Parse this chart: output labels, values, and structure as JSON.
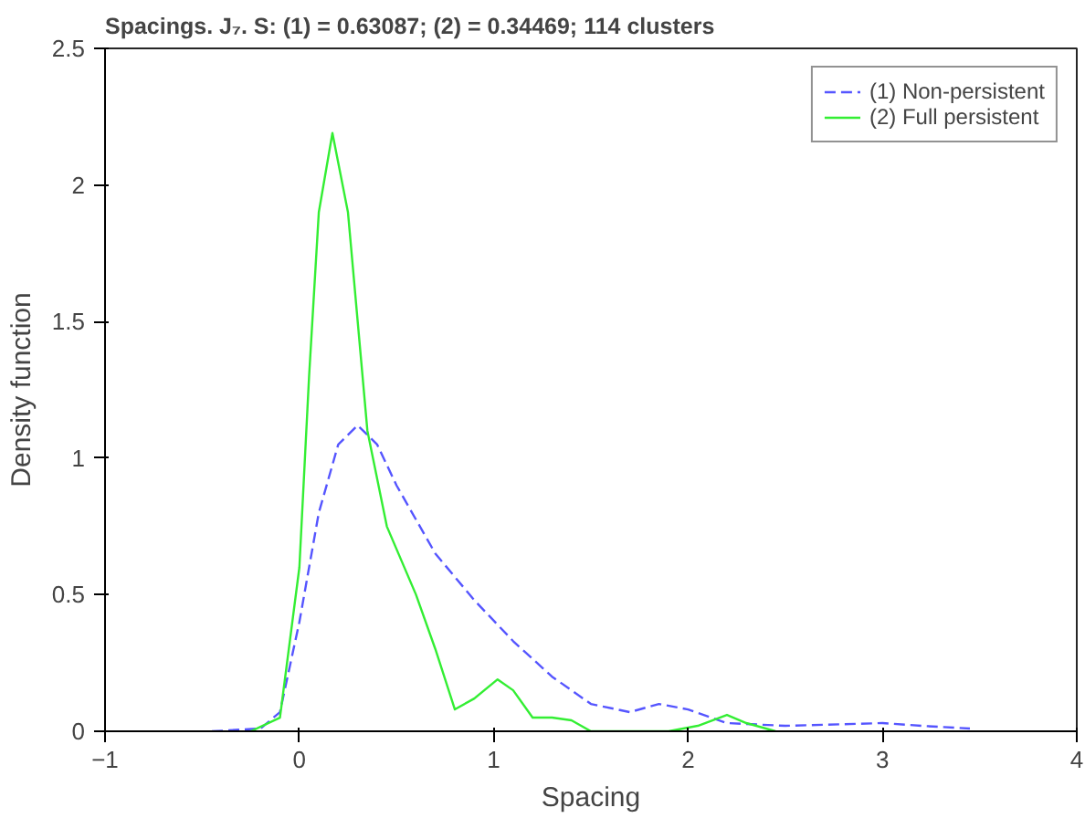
{
  "chart_data": {
    "type": "line",
    "title": "Spacings. J₇. S: (1) = 0.63087; (2) = 0.34469; 114 clusters",
    "xlabel": "Spacing",
    "ylabel": "Density function",
    "xlim": [
      -1,
      4
    ],
    "ylim": [
      0,
      2.5
    ],
    "xticks": [
      -1,
      0,
      1,
      2,
      3,
      4
    ],
    "yticks": [
      0,
      0.5,
      1,
      1.5,
      2,
      2.5
    ],
    "grid": false,
    "legend": "top right",
    "marker": "none",
    "series": [
      {
        "name": "(1) Non-persistent",
        "color": "#5555ff",
        "line_style": "dashed",
        "x": [
          -0.45,
          -0.2,
          -0.1,
          0,
          0.1,
          0.2,
          0.3,
          0.4,
          0.5,
          0.7,
          0.9,
          1.1,
          1.3,
          1.5,
          1.7,
          1.85,
          2.0,
          2.2,
          2.5,
          3.0,
          3.2,
          3.45
        ],
        "values": [
          0,
          0.01,
          0.07,
          0.4,
          0.8,
          1.05,
          1.12,
          1.05,
          0.9,
          0.65,
          0.48,
          0.33,
          0.2,
          0.1,
          0.07,
          0.1,
          0.08,
          0.03,
          0.02,
          0.03,
          0.02,
          0.01
        ]
      },
      {
        "name": "(2) Full persistent",
        "color": "#33ee33",
        "line_style": "solid",
        "x": [
          -0.25,
          -0.1,
          0,
          0.05,
          0.1,
          0.17,
          0.25,
          0.35,
          0.45,
          0.6,
          0.7,
          0.8,
          0.9,
          1.02,
          1.1,
          1.2,
          1.3,
          1.4,
          1.5,
          1.9,
          2.05,
          2.2,
          2.3,
          2.45
        ],
        "values": [
          0,
          0.05,
          0.6,
          1.3,
          1.9,
          2.19,
          1.9,
          1.1,
          0.75,
          0.5,
          0.3,
          0.08,
          0.12,
          0.19,
          0.15,
          0.05,
          0.05,
          0.04,
          0,
          0,
          0.02,
          0.06,
          0.03,
          0
        ]
      }
    ]
  }
}
